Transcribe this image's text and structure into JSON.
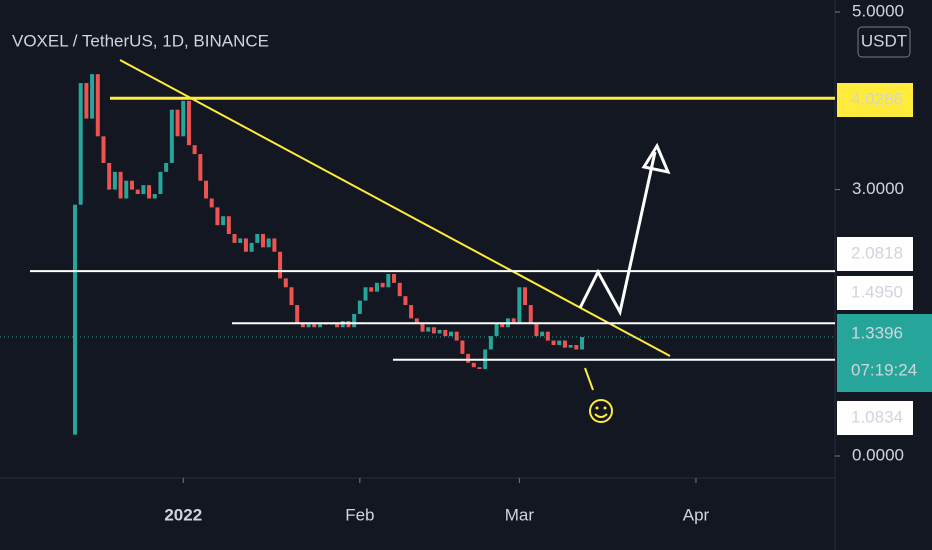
{
  "chart_data": {
    "type": "candlestick",
    "title": "VOXEL / TetherUS, 1D, BINANCE",
    "currency": "USDT",
    "up_color": "#26a69a",
    "down_color": "#ef5350",
    "open": [
      0.24,
      2.83,
      4.2,
      3.8,
      4.3,
      3.6,
      3.3,
      3.0,
      3.2,
      2.9,
      3.1,
      3.0,
      2.95,
      3.05,
      2.9,
      2.95,
      3.2,
      3.3,
      3.9,
      3.6,
      4.0,
      3.5,
      3.4,
      3.1,
      2.9,
      2.8,
      2.6,
      2.7,
      2.5,
      2.4,
      2.45,
      2.3,
      2.4,
      2.5,
      2.35,
      2.45,
      2.3,
      2.0,
      1.9,
      1.7,
      1.5,
      1.45,
      1.5,
      1.45,
      1.5,
      1.48,
      1.5,
      1.45,
      1.52,
      1.45,
      1.6,
      1.75,
      1.9,
      1.85,
      1.95,
      1.9,
      2.05,
      1.95,
      1.8,
      1.7,
      1.55,
      1.5,
      1.4,
      1.45,
      1.38,
      1.42,
      1.35,
      1.4,
      1.3,
      1.15,
      1.05,
      1.0,
      0.98,
      1.2,
      1.35,
      1.5,
      1.45,
      1.55,
      1.5,
      1.9,
      1.7,
      1.5,
      1.35,
      1.4,
      1.3,
      1.25,
      1.3,
      1.22,
      1.25,
      1.2
    ],
    "close": [
      2.83,
      4.2,
      3.8,
      4.3,
      3.6,
      3.3,
      3.0,
      3.2,
      2.9,
      3.1,
      3.0,
      2.95,
      3.05,
      2.9,
      2.95,
      3.2,
      3.3,
      3.9,
      3.6,
      4.0,
      3.5,
      3.4,
      3.1,
      2.9,
      2.8,
      2.6,
      2.7,
      2.5,
      2.4,
      2.45,
      2.3,
      2.4,
      2.5,
      2.35,
      2.45,
      2.3,
      2.0,
      1.9,
      1.7,
      1.5,
      1.45,
      1.5,
      1.45,
      1.5,
      1.48,
      1.5,
      1.45,
      1.52,
      1.45,
      1.6,
      1.75,
      1.9,
      1.85,
      1.95,
      1.9,
      2.05,
      1.95,
      1.8,
      1.7,
      1.55,
      1.5,
      1.4,
      1.45,
      1.38,
      1.42,
      1.35,
      1.4,
      1.3,
      1.15,
      1.05,
      1.0,
      0.98,
      1.2,
      1.35,
      1.5,
      1.45,
      1.55,
      1.5,
      1.9,
      1.7,
      1.5,
      1.35,
      1.4,
      1.3,
      1.25,
      1.3,
      1.22,
      1.25,
      1.2,
      1.34
    ],
    "xlim": [
      0,
      132
    ],
    "xticks": [
      {
        "value": 19,
        "label": "2022"
      },
      {
        "value": 50,
        "label": "Feb"
      },
      {
        "value": 78,
        "label": "Mar"
      },
      {
        "value": 109,
        "label": "Apr"
      }
    ],
    "ylim": [
      0,
      5
    ],
    "yticks": [
      {
        "value": 5,
        "label": "5.0000"
      },
      {
        "value": 3,
        "label": "3.0000"
      },
      {
        "value": 0,
        "label": "0.0000"
      }
    ],
    "levels": [
      {
        "value": 4.0286,
        "label": "4.0286",
        "color": "#ffeb3b"
      },
      {
        "value": 2.0818,
        "label": "2.0818",
        "color": "#ffffff"
      },
      {
        "value": 1.495,
        "label": "1.4950",
        "color": "#ffffff"
      },
      {
        "value": 1.0834,
        "label": "1.0834",
        "color": "#ffffff"
      }
    ],
    "current_price": {
      "value": 1.3396,
      "label": "1.3396",
      "countdown": "07:19:24",
      "color": "#26a69a"
    }
  }
}
